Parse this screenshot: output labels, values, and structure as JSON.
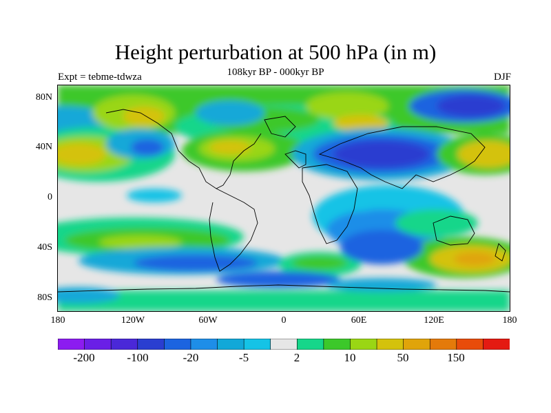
{
  "title": "Height perturbation at 500 hPa (in m)",
  "subtitle": "108kyr BP - 000kyr BP",
  "left_label": "Expt = tebme-tdwza",
  "right_label": "DJF",
  "axes": {
    "y_ticks": [
      "80N",
      "40N",
      "0",
      "40S",
      "80S"
    ],
    "x_ticks": [
      "180",
      "120W",
      "60W",
      "0",
      "60E",
      "120E",
      "180"
    ]
  },
  "colorbar": {
    "colors": [
      "#8c1cf0",
      "#6a1fe6",
      "#4a28d8",
      "#2a3ed0",
      "#1c64e0",
      "#1e8ee8",
      "#12a8d8",
      "#15c3e6",
      "#e6e6e6",
      "#16d68a",
      "#3cc82a",
      "#9ad614",
      "#d4c20c",
      "#e0a40a",
      "#e47a0a",
      "#e84c0a",
      "#e41a12"
    ],
    "labels": [
      "-200",
      "-100",
      "-20",
      "-5",
      "2",
      "10",
      "50",
      "150"
    ]
  }
}
